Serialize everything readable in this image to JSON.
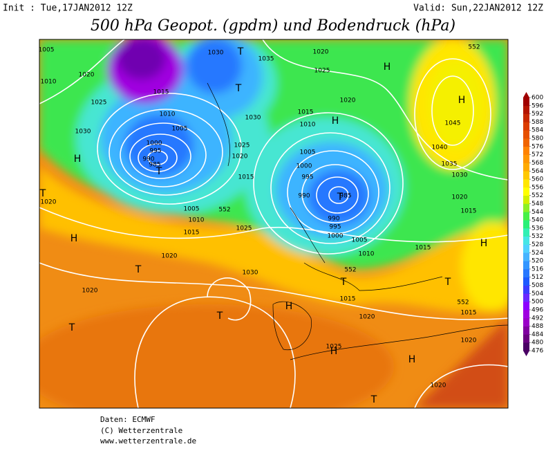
{
  "header": {
    "init": "Init : Tue,17JAN2012 12Z",
    "valid": "Valid: Sun,22JAN2012 12Z",
    "title": "500 hPa Geopot. (gpdm) und Bodendruck (hPa)"
  },
  "footer": [
    "Daten: ECMWF",
    "(C) Wetterzentrale",
    "www.wetterzentrale.de"
  ],
  "colorbar": {
    "ticks": [
      476,
      480,
      484,
      488,
      492,
      496,
      500,
      504,
      508,
      512,
      516,
      520,
      524,
      528,
      532,
      536,
      540,
      544,
      548,
      552,
      556,
      560,
      564,
      568,
      572,
      576,
      580,
      584,
      588,
      592,
      596,
      600
    ],
    "colors": [
      "#4a0064",
      "#6a0080",
      "#8000a0",
      "#9a00c8",
      "#a000e0",
      "#8c00ff",
      "#6a28ff",
      "#3c3cff",
      "#1e5aff",
      "#2878ff",
      "#3296ff",
      "#46b4ff",
      "#50d2ff",
      "#46e6e6",
      "#32f0b4",
      "#28f078",
      "#46f046",
      "#8cf028",
      "#d2f000",
      "#ffff00",
      "#ffe600",
      "#ffc800",
      "#ffaa00",
      "#ff9600",
      "#ff8200",
      "#f06400",
      "#e65000",
      "#dc3c00",
      "#c82800",
      "#b41400",
      "#a00000"
    ]
  },
  "map_labels": [
    "H",
    "H",
    "H",
    "H",
    "H",
    "H",
    "H",
    "H",
    "H",
    "T",
    "T",
    "T",
    "T",
    "T",
    "T",
    "T",
    "T",
    "T",
    "T",
    "T",
    "1030",
    "1035",
    "1020",
    "1025",
    "1020",
    "1010",
    "1025",
    "1015",
    "1010",
    "1005",
    "1030",
    "1000",
    "995",
    "990",
    "985",
    "1030",
    "1015",
    "1010",
    "1005",
    "1000",
    "995",
    "990",
    "985",
    "990",
    "995",
    "1000",
    "1005",
    "1010",
    "1015",
    "1020",
    "1015",
    "1030",
    "1045",
    "1040",
    "1035",
    "1025",
    "1020",
    "1015",
    "1020",
    "1005",
    "1010",
    "1015",
    "1025",
    "1020",
    "1030",
    "1020",
    "1015",
    "1020",
    "1015",
    "1025",
    "1020",
    "1020",
    "1020",
    "552",
    "552",
    "552",
    "552",
    "1005"
  ]
}
